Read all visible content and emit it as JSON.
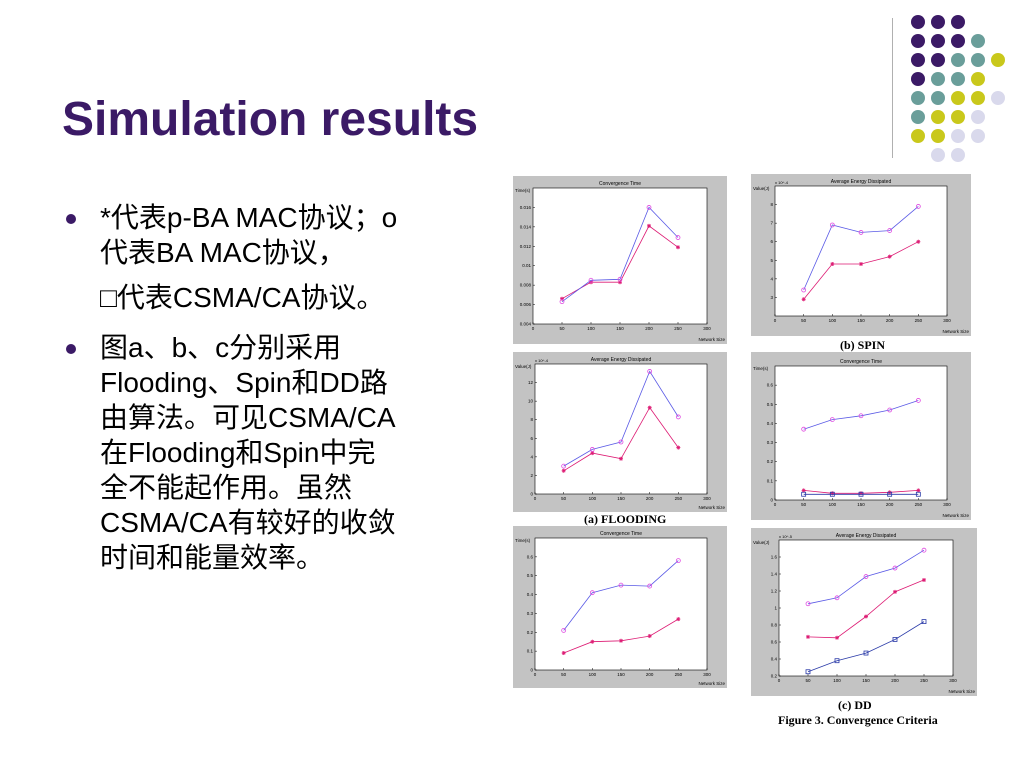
{
  "slide": {
    "title": "Simulation results",
    "bullets": [
      {
        "lines": [
          "*代表p-BA MAC协议；o",
          "代表BA MAC协议，",
          "□代表CSMA/CA协议。"
        ]
      },
      {
        "lines": [
          "图a、b、c分别采用",
          "Flooding、Spin和DD路",
          "由算法。可见CSMA/CA",
          "在Flooding和Spin中完",
          "全不能起作用。虽然",
          "CSMA/CA有较好的收敛",
          "时间和能量效率。"
        ]
      }
    ]
  },
  "captions": {
    "flooding": "(a) FLOODING",
    "spin": "(b) SPIN",
    "dd": "(c) DD",
    "figure": "Figure 3. Convergence Criteria"
  },
  "colors": {
    "title": "#3b1a66",
    "purple": "#3b1a66",
    "teal": "#6a9e9a",
    "yellow": "#c9c81b",
    "lavender": "#d9d9ec",
    "series_pba": "#dd1a73",
    "series_ba": "#5a5ae6",
    "series_ba_marker": "#e04ae0",
    "series_csma": "#2a3aa8"
  },
  "chart_data": [
    {
      "id": "flooding-time",
      "type": "line",
      "title": "Convergence Time",
      "ylabel": "Time(s)",
      "xlabel": "Network Size",
      "xlim": [
        0,
        300
      ],
      "xticks": [
        0,
        50,
        100,
        150,
        200,
        250,
        300
      ],
      "ylim": [
        0.004,
        0.018
      ],
      "yticks": [
        "0.004",
        "0.006",
        "0.008",
        "0.01",
        "0.012",
        "0.014",
        "0.016"
      ],
      "ytick_values": [
        0.004,
        0.006,
        0.008,
        0.01,
        0.012,
        0.014,
        0.016
      ],
      "x": [
        50,
        100,
        150,
        200,
        250
      ],
      "series": [
        {
          "key": "pba",
          "marker": "star",
          "values": [
            0.0066,
            0.0083,
            0.0083,
            0.0141,
            0.0119
          ]
        },
        {
          "key": "ba",
          "marker": "circle",
          "values": [
            0.0063,
            0.0085,
            0.0086,
            0.016,
            0.0129
          ]
        }
      ]
    },
    {
      "id": "flooding-energy",
      "type": "line",
      "title": "Average Energy Dissipated",
      "ylabel": "Value(J)",
      "yscale": "x 10^-4",
      "xlabel": "Network Size",
      "xlim": [
        0,
        300
      ],
      "xticks": [
        0,
        50,
        100,
        150,
        200,
        250,
        300
      ],
      "ylim": [
        0,
        14
      ],
      "yticks": [
        "0",
        "2",
        "4",
        "6",
        "8",
        "10",
        "12"
      ],
      "ytick_values": [
        0,
        2,
        4,
        6,
        8,
        10,
        12
      ],
      "x": [
        50,
        100,
        150,
        200,
        250
      ],
      "series": [
        {
          "key": "pba",
          "marker": "star",
          "values": [
            2.5,
            4.4,
            3.8,
            9.3,
            5.0
          ]
        },
        {
          "key": "ba",
          "marker": "circle",
          "values": [
            3.0,
            4.8,
            5.6,
            13.2,
            8.3
          ]
        }
      ]
    },
    {
      "id": "flooding-time-2",
      "type": "line",
      "title": "Convergence Time",
      "ylabel": "Time(s)",
      "xlabel": "Network Size",
      "xlim": [
        0,
        300
      ],
      "xticks": [
        0,
        50,
        100,
        150,
        200,
        250,
        300
      ],
      "ylim": [
        0,
        0.7
      ],
      "yticks": [
        "0",
        "0.1",
        "0.2",
        "0.3",
        "0.4",
        "0.5",
        "0.6"
      ],
      "ytick_values": [
        0,
        0.1,
        0.2,
        0.3,
        0.4,
        0.5,
        0.6
      ],
      "x": [
        50,
        100,
        150,
        200,
        250
      ],
      "series": [
        {
          "key": "pba",
          "marker": "star",
          "values": [
            0.09,
            0.15,
            0.155,
            0.18,
            0.27
          ]
        },
        {
          "key": "ba",
          "marker": "circle",
          "values": [
            0.21,
            0.41,
            0.45,
            0.445,
            0.58
          ]
        }
      ]
    },
    {
      "id": "spin-energy",
      "type": "line",
      "title": "Average Energy Dissipated",
      "ylabel": "Value(J)",
      "yscale": "x 10^-4",
      "xlabel": "Network Size",
      "xlim": [
        0,
        300
      ],
      "xticks": [
        0,
        50,
        100,
        150,
        200,
        250,
        300
      ],
      "ylim": [
        2,
        9
      ],
      "yticks": [
        "3",
        "4",
        "5",
        "6",
        "7",
        "8"
      ],
      "ytick_values": [
        3,
        4,
        5,
        6,
        7,
        8
      ],
      "x": [
        50,
        100,
        150,
        200,
        250
      ],
      "series": [
        {
          "key": "pba",
          "marker": "star",
          "values": [
            2.9,
            4.8,
            4.8,
            5.2,
            6.0
          ]
        },
        {
          "key": "ba",
          "marker": "circle",
          "values": [
            3.4,
            6.9,
            6.5,
            6.6,
            7.9
          ]
        }
      ]
    },
    {
      "id": "spin-time",
      "type": "line",
      "title": "Convergence Time",
      "ylabel": "Time(s)",
      "xlabel": "Network Size",
      "xlim": [
        0,
        300
      ],
      "xticks": [
        0,
        50,
        100,
        150,
        200,
        250,
        300
      ],
      "ylim": [
        0,
        0.7
      ],
      "yticks": [
        "0",
        "0.1",
        "0.2",
        "0.3",
        "0.4",
        "0.5",
        "0.6"
      ],
      "ytick_values": [
        0,
        0.1,
        0.2,
        0.3,
        0.4,
        0.5,
        0.6
      ],
      "x": [
        50,
        100,
        150,
        200,
        250
      ],
      "series": [
        {
          "key": "pba",
          "marker": "star",
          "values": [
            0.05,
            0.035,
            0.035,
            0.04,
            0.05
          ]
        },
        {
          "key": "ba",
          "marker": "circle",
          "values": [
            0.37,
            0.42,
            0.44,
            0.47,
            0.52
          ]
        },
        {
          "key": "csma",
          "marker": "square",
          "values": [
            0.03,
            0.03,
            0.03,
            0.03,
            0.03
          ]
        }
      ]
    },
    {
      "id": "dd-energy",
      "type": "line",
      "title": "Average Energy Dissipated",
      "ylabel": "Value(J)",
      "yscale": "x 10^-5",
      "xlabel": "Network Size",
      "xlim": [
        0,
        300
      ],
      "xticks": [
        0,
        50,
        100,
        150,
        200,
        250,
        300
      ],
      "ylim": [
        0.2,
        1.8
      ],
      "yticks": [
        "0.2",
        "0.4",
        "0.6",
        "0.8",
        "1",
        "1.2",
        "1.4",
        "1.6"
      ],
      "ytick_values": [
        0.2,
        0.4,
        0.6,
        0.8,
        1.0,
        1.2,
        1.4,
        1.6
      ],
      "x": [
        50,
        100,
        150,
        200,
        250
      ],
      "series": [
        {
          "key": "pba",
          "marker": "star",
          "values": [
            0.66,
            0.65,
            0.9,
            1.19,
            1.33
          ]
        },
        {
          "key": "ba",
          "marker": "circle",
          "values": [
            1.05,
            1.12,
            1.37,
            1.47,
            1.68
          ]
        },
        {
          "key": "csma",
          "marker": "square",
          "values": [
            0.25,
            0.38,
            0.47,
            0.63,
            0.84
          ]
        }
      ]
    }
  ]
}
